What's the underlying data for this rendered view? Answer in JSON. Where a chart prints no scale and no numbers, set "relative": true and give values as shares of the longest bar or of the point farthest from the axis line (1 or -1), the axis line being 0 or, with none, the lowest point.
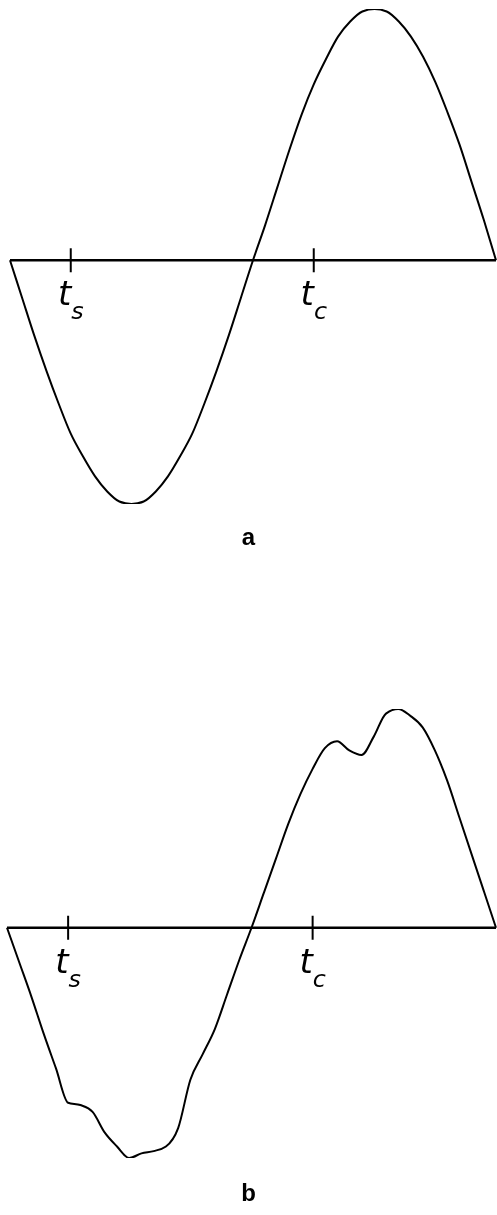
{
  "chart_data": [
    {
      "type": "line",
      "title": "a",
      "relative": true,
      "tick_labels": "x",
      "marker": "none",
      "categories": [
        null,
        null,
        null,
        null,
        null,
        "t$_{s}$",
        null,
        null,
        null,
        null,
        null,
        null,
        null,
        null,
        null,
        null,
        null,
        null,
        null,
        null,
        null,
        null,
        null,
        null,
        null,
        "t$_{c}$",
        null,
        null,
        null,
        null,
        null,
        null,
        null,
        null,
        null,
        null,
        null,
        null,
        null,
        null,
        null
      ],
      "series": [
        {
          "color": "#000000",
          "values": [
            0,
            -0.15,
            -0.3,
            -0.44,
            -0.57,
            -0.69,
            -0.78,
            -0.86,
            -0.92,
            -0.96,
            -0.97,
            -0.96,
            -0.92,
            -0.86,
            -0.78,
            -0.69,
            -0.57,
            -0.44,
            -0.3,
            -0.15,
            0,
            0.14,
            0.29,
            0.44,
            0.58,
            0.7,
            0.8,
            0.89,
            0.95,
            0.99,
            1,
            0.99,
            0.95,
            0.89,
            0.81,
            0.71,
            0.59,
            0.46,
            0.31,
            0.16,
            0
          ]
        }
      ]
    },
    {
      "type": "line",
      "title": "b",
      "relative": true,
      "tick_labels": "x",
      "marker": "none",
      "categories": [
        null,
        null,
        null,
        null,
        null,
        "t$_{s}$",
        null,
        null,
        null,
        null,
        null,
        null,
        null,
        null,
        null,
        null,
        null,
        null,
        null,
        null,
        null,
        null,
        null,
        null,
        null,
        "t$_{c}$",
        null,
        null,
        null,
        null,
        null,
        null,
        null,
        null,
        null,
        null,
        null,
        null,
        null,
        null,
        null
      ],
      "series": [
        {
          "color": "#000000",
          "values": [
            0,
            -0.15,
            -0.3,
            -0.46,
            -0.61,
            -0.76,
            -0.77,
            -0.8,
            -0.89,
            -0.95,
            -1,
            -0.98,
            -0.97,
            -0.95,
            -0.87,
            -0.66,
            -0.55,
            -0.44,
            -0.29,
            -0.14,
            0,
            0.15,
            0.3,
            0.45,
            0.58,
            0.69,
            0.78,
            0.81,
            0.77,
            0.75,
            0.83,
            0.93,
            0.95,
            0.92,
            0.87,
            0.77,
            0.64,
            0.48,
            0.32,
            0.16,
            0
          ]
        }
      ]
    }
  ]
}
